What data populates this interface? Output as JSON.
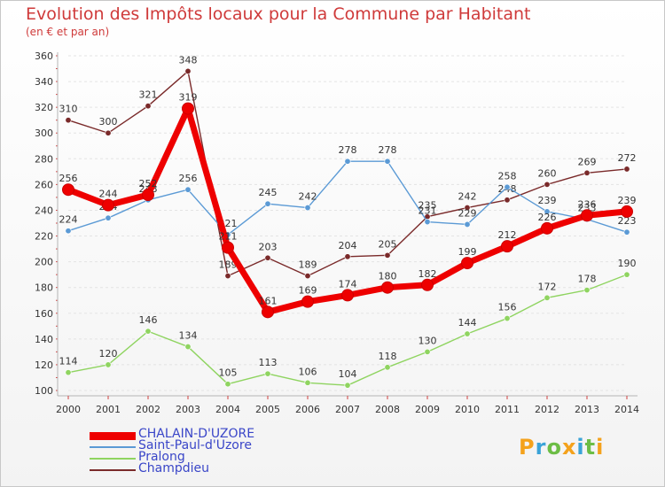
{
  "title": "Evolution des Impôts locaux pour la Commune par Habitant",
  "subtitle": "(en € et par an)",
  "logo": {
    "letters": [
      "P",
      "r",
      "o",
      "x",
      "i",
      "t",
      "i"
    ],
    "colors": [
      "#f4a21c",
      "#3aa3d8",
      "#6cbd45",
      "#f4a21c",
      "#3aa3d8",
      "#6cbd45",
      "#f4a21c"
    ]
  },
  "chart_data": {
    "type": "line",
    "title": "Evolution des Impôts locaux pour la Commune par Habitant",
    "subtitle": "(en € et par an)",
    "x": [
      "2000",
      "2001",
      "2002",
      "2003",
      "2004",
      "2005",
      "2006",
      "2007",
      "2008",
      "2009",
      "2010",
      "2011",
      "2012",
      "2013",
      "2014"
    ],
    "ylim": [
      100,
      360
    ],
    "yticks": [
      100,
      120,
      140,
      160,
      180,
      200,
      220,
      240,
      260,
      280,
      300,
      320,
      340,
      360
    ],
    "grid": true,
    "legend_position": "bottom-left",
    "series": [
      {
        "name": "Champdieu",
        "color": "#7a2a2a",
        "values": [
          310,
          300,
          321,
          348,
          189,
          203,
          189,
          204,
          205,
          235,
          242,
          248,
          260,
          269,
          272
        ]
      },
      {
        "name": "Pralong",
        "color": "#8fd460",
        "values": [
          114,
          120,
          146,
          134,
          105,
          113,
          106,
          104,
          118,
          130,
          144,
          156,
          172,
          178,
          190
        ]
      },
      {
        "name": "Saint-Paul-d'Uzore",
        "color": "#5b9ad5",
        "values": [
          224,
          234,
          248,
          256,
          221,
          245,
          242,
          278,
          278,
          231,
          229,
          258,
          239,
          233,
          223
        ]
      },
      {
        "name": "CHALAIN-D'UZORE",
        "color": "#ee0000",
        "values": [
          256,
          244,
          252,
          319,
          211,
          161,
          169,
          174,
          180,
          182,
          199,
          212,
          226,
          236,
          239
        ]
      }
    ],
    "legend_order": [
      "CHALAIN-D'UZORE",
      "Saint-Paul-d'Uzore",
      "Pralong",
      "Champdieu"
    ]
  }
}
